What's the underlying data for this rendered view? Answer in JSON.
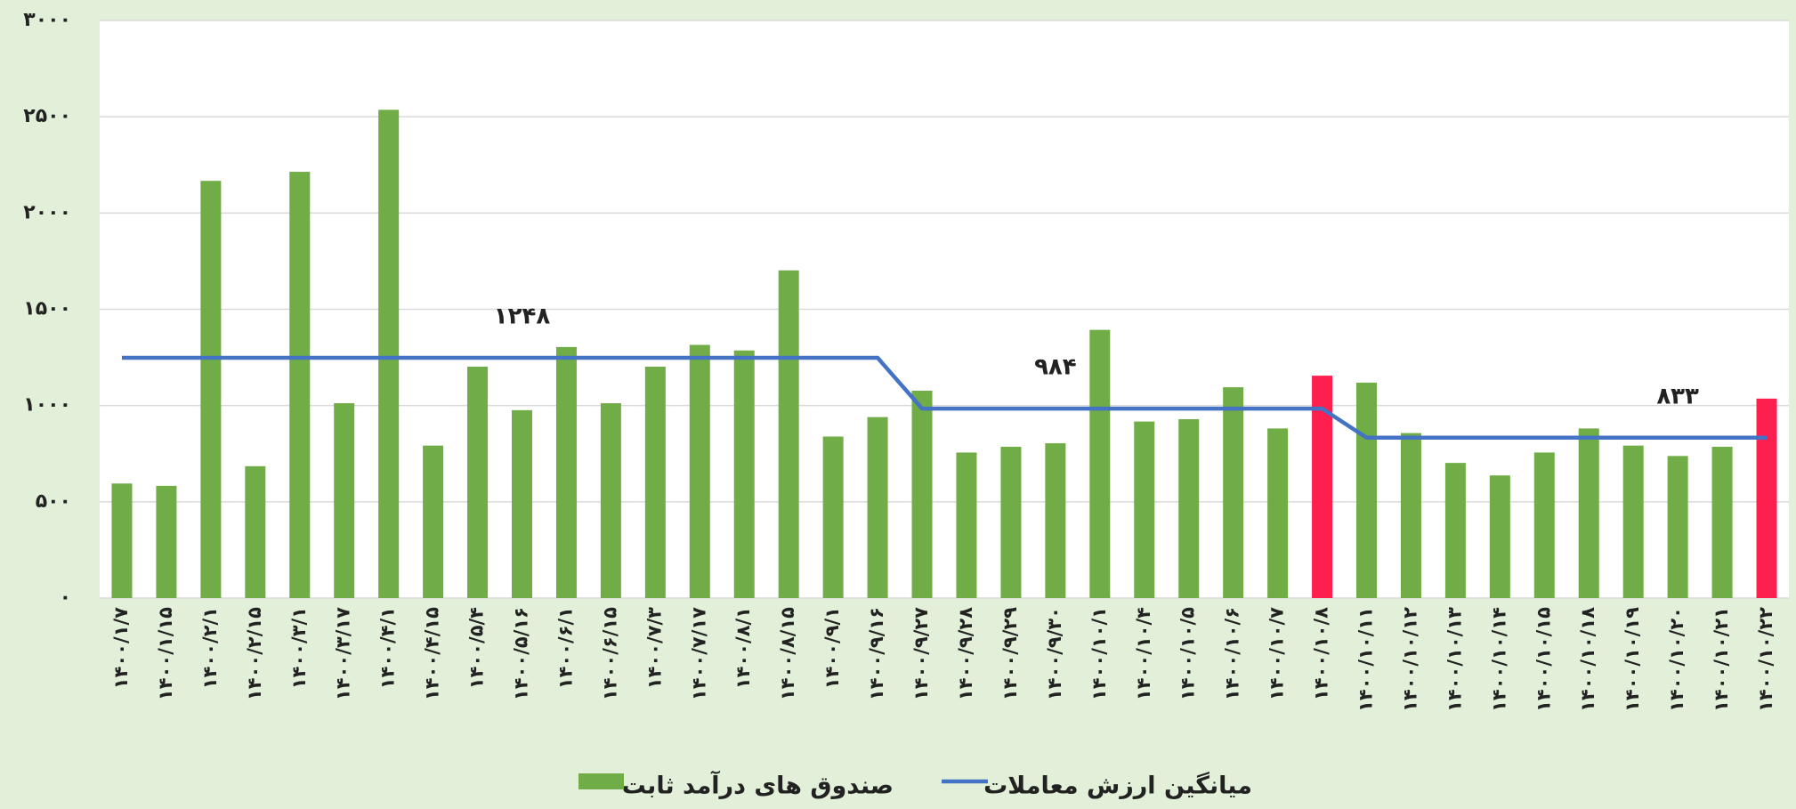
{
  "chart_data": {
    "type": "bar",
    "categories": [
      "۱۴۰۰/۱/۷",
      "۱۴۰۰/۱/۱۵",
      "۱۴۰۰/۲/۱",
      "۱۴۰۰/۲/۱۵",
      "۱۴۰۰/۳/۱",
      "۱۴۰۰/۳/۱۷",
      "۱۴۰۰/۴/۱",
      "۱۴۰۰/۴/۱۵",
      "۱۴۰۰/۵/۴",
      "۱۴۰۰/۵/۱۶",
      "۱۴۰۰/۶/۱",
      "۱۴۰۰/۶/۱۵",
      "۱۴۰۰/۷/۳",
      "۱۴۰۰/۷/۱۷",
      "۱۴۰۰/۸/۱",
      "۱۴۰۰/۸/۱۵",
      "۱۴۰۰/۹/۱",
      "۱۴۰۰/۹/۱۶",
      "۱۴۰۰/۹/۲۷",
      "۱۴۰۰/۹/۲۸",
      "۱۴۰۰/۹/۲۹",
      "۱۴۰۰/۹/۳۰",
      "۱۴۰۰/۱۰/۱",
      "۱۴۰۰/۱۰/۴",
      "۱۴۰۰/۱۰/۵",
      "۱۴۰۰/۱۰/۶",
      "۱۴۰۰/۱۰/۷",
      "۱۴۰۰/۱۰/۸",
      "۱۴۰۰/۱۰/۱۱",
      "۱۴۰۰/۱۰/۱۲",
      "۱۴۰۰/۱۰/۱۳",
      "۱۴۰۰/۱۰/۱۴",
      "۱۴۰۰/۱۰/۱۵",
      "۱۴۰۰/۱۰/۱۸",
      "۱۴۰۰/۱۰/۱۹",
      "۱۴۰۰/۱۰/۲۰",
      "۱۴۰۰/۱۰/۲۱",
      "۱۴۰۰/۱۰/۲۲"
    ],
    "series": [
      {
        "name": "صندوق های درآمد ثابت",
        "type": "bar",
        "color": "#70ad47",
        "colors": [
          "#70ad47",
          "#70ad47",
          "#70ad47",
          "#70ad47",
          "#70ad47",
          "#70ad47",
          "#70ad47",
          "#70ad47",
          "#70ad47",
          "#70ad47",
          "#70ad47",
          "#70ad47",
          "#70ad47",
          "#70ad47",
          "#70ad47",
          "#70ad47",
          "#70ad47",
          "#70ad47",
          "#70ad47",
          "#70ad47",
          "#70ad47",
          "#70ad47",
          "#70ad47",
          "#70ad47",
          "#70ad47",
          "#70ad47",
          "#70ad47",
          "#ff1f4e",
          "#70ad47",
          "#70ad47",
          "#70ad47",
          "#70ad47",
          "#70ad47",
          "#70ad47",
          "#70ad47",
          "#70ad47",
          "#70ad47",
          "#ff1f4e"
        ],
        "values": [
          595,
          583,
          2167,
          685,
          2214,
          1012,
          2536,
          792,
          1202,
          976,
          1304,
          1012,
          1202,
          1315,
          1286,
          1702,
          839,
          940,
          1077,
          756,
          786,
          804,
          1393,
          917,
          929,
          1095,
          881,
          1155,
          1119,
          857,
          702,
          637,
          756,
          881,
          792,
          738,
          786,
          1036
        ]
      },
      {
        "name": "میانگین ارزش معاملات",
        "type": "line",
        "color": "#4472c4",
        "values": [
          1248,
          1248,
          1248,
          1248,
          1248,
          1248,
          1248,
          1248,
          1248,
          1248,
          1248,
          1248,
          1248,
          1248,
          1248,
          1248,
          1248,
          1248,
          984,
          984,
          984,
          984,
          984,
          984,
          984,
          984,
          984,
          984,
          833,
          833,
          833,
          833,
          833,
          833,
          833,
          833,
          833,
          833
        ],
        "value_labels": [
          null,
          null,
          null,
          null,
          null,
          null,
          null,
          null,
          null,
          "۱۲۴۸",
          null,
          null,
          null,
          null,
          null,
          null,
          null,
          null,
          null,
          null,
          null,
          "۹۸۴",
          null,
          null,
          null,
          null,
          null,
          null,
          null,
          null,
          null,
          null,
          null,
          null,
          null,
          "۸۳۳",
          null,
          null
        ]
      }
    ],
    "ylim": [
      0,
      3000
    ],
    "yticks": [
      {
        "value": 0,
        "label": "۰"
      },
      {
        "value": 500,
        "label": "۵۰۰"
      },
      {
        "value": 1000,
        "label": "۱۰۰۰"
      },
      {
        "value": 1500,
        "label": "۱۵۰۰"
      },
      {
        "value": 2000,
        "label": "۲۰۰۰"
      },
      {
        "value": 2500,
        "label": "۲۵۰۰"
      },
      {
        "value": 3000,
        "label": "۳۰۰۰"
      }
    ],
    "grid": true,
    "legend": "bottom"
  }
}
